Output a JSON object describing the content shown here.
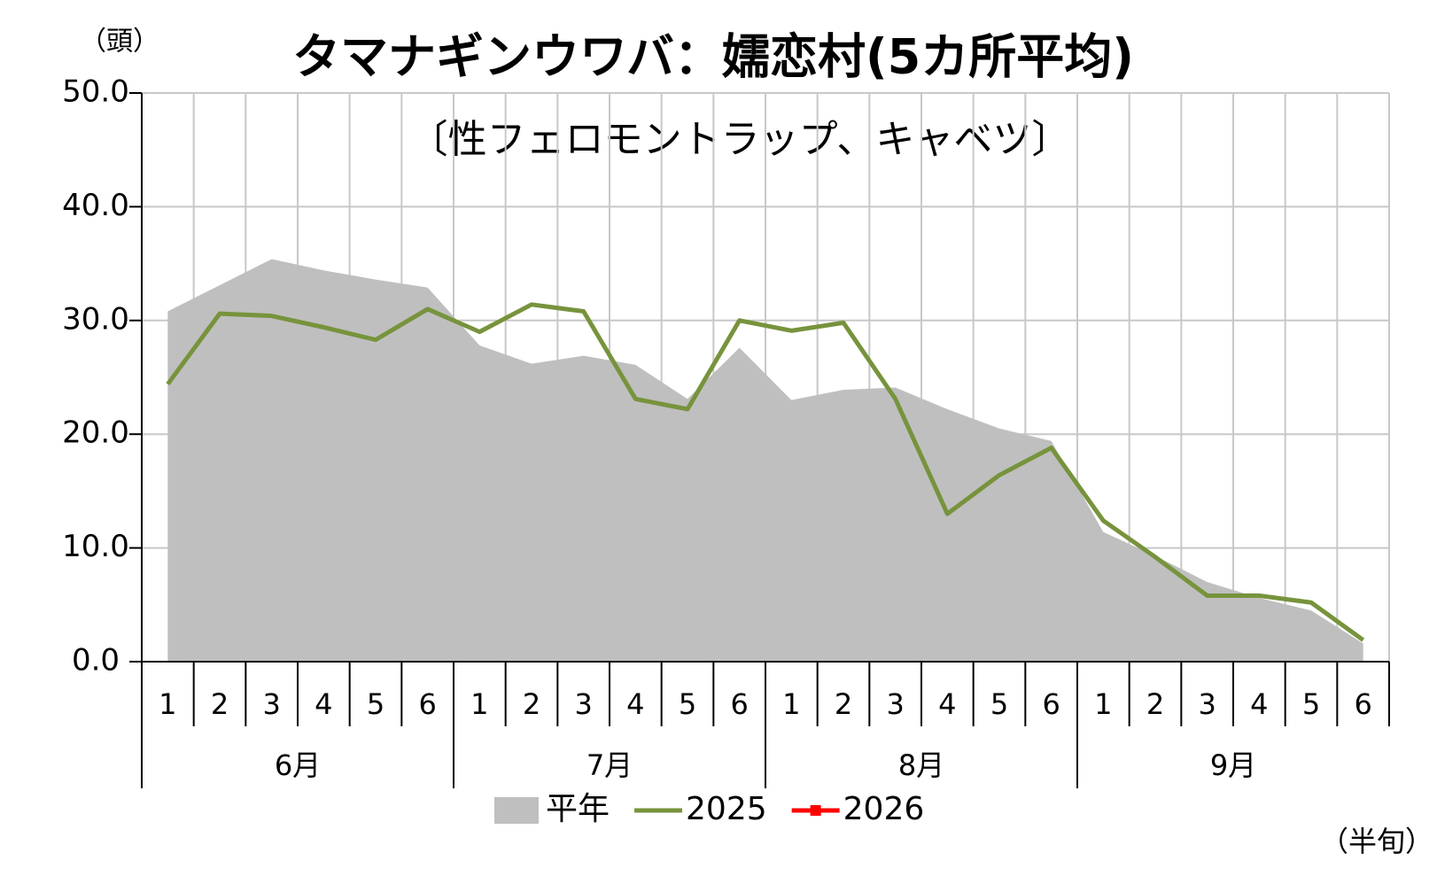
{
  "chart_data": {
    "type": "line",
    "title": "タマナギンウワバ：嬬恋村(5カ所平均)",
    "subtitle": "〔性フェロモントラップ、キャベツ〕",
    "y_unit_label": "（頭）",
    "x_unit_label": "（半旬）",
    "categories": [
      "1",
      "2",
      "3",
      "4",
      "5",
      "6",
      "1",
      "2",
      "3",
      "4",
      "5",
      "6",
      "1",
      "2",
      "3",
      "4",
      "5",
      "6",
      "1",
      "2",
      "3",
      "4",
      "5",
      "6"
    ],
    "category_groups": [
      "6月",
      "7月",
      "8月",
      "9月"
    ],
    "ylim": [
      0,
      50
    ],
    "yticks": [
      {
        "value": 0,
        "label": "0.0"
      },
      {
        "value": 10,
        "label": "10.0"
      },
      {
        "value": 20,
        "label": "20.0"
      },
      {
        "value": 30,
        "label": "30.0"
      },
      {
        "value": 40,
        "label": "40.0"
      },
      {
        "value": 50,
        "label": "50.0"
      }
    ],
    "grid": true,
    "series": [
      {
        "name": "平年",
        "type": "area",
        "color": "#bfbfbf",
        "values": [
          30.8,
          33.1,
          35.4,
          34.4,
          33.6,
          32.9,
          27.8,
          26.2,
          26.9,
          26.1,
          23.1,
          27.6,
          23.0,
          23.9,
          24.1,
          22.2,
          20.5,
          19.4,
          11.4,
          9.3,
          7.0,
          5.6,
          4.5,
          1.6
        ]
      },
      {
        "name": "2025",
        "type": "line",
        "color": "#77933c",
        "values": [
          24.4,
          30.6,
          30.4,
          29.4,
          28.3,
          31.0,
          29.0,
          31.4,
          30.8,
          23.1,
          22.2,
          30.0,
          29.1,
          29.8,
          23.1,
          13.0,
          16.4,
          18.8,
          12.4,
          9.2,
          5.8,
          5.8,
          5.2,
          1.9
        ]
      },
      {
        "name": "2026",
        "type": "line",
        "color": "#ff0000",
        "marker": "square",
        "values": [
          null,
          null,
          null,
          null,
          null,
          null,
          null,
          null,
          null,
          null,
          null,
          null,
          null,
          null,
          null,
          null,
          null,
          null,
          null,
          null,
          null,
          null,
          null,
          null
        ]
      }
    ]
  }
}
